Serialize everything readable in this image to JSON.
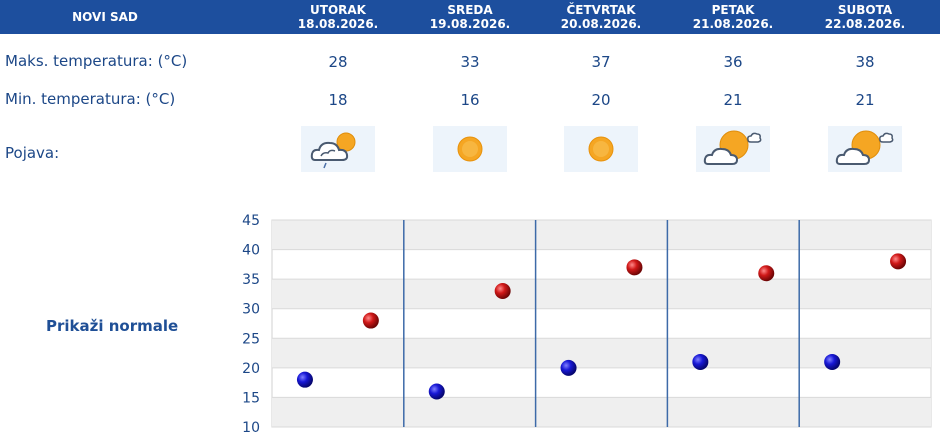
{
  "header": {
    "city": "NOVI SAD",
    "days": [
      {
        "name": "UTORAK",
        "date": "18.08.2026."
      },
      {
        "name": "SREDA",
        "date": "19.08.2026."
      },
      {
        "name": "ČETVRTAK",
        "date": "20.08.2026."
      },
      {
        "name": "PETAK",
        "date": "21.08.2026."
      },
      {
        "name": "SUBOTA",
        "date": "22.08.2026."
      }
    ]
  },
  "rows": {
    "max_label": "Maks. temperatura: (°C)",
    "min_label": "Min. temperatura: (°C)",
    "phenomenon_label": "Pojava:",
    "max": [
      "28",
      "33",
      "37",
      "36",
      "38"
    ],
    "min": [
      "18",
      "16",
      "20",
      "21",
      "21"
    ],
    "icons": [
      "cloud-sun-rain-icon",
      "sun-icon",
      "sun-icon",
      "sun-cloud-icon",
      "sun-cloud-icon"
    ]
  },
  "normals_link": "Prikaži normale",
  "chart_data": {
    "type": "scatter",
    "categories": [
      "UTORAK",
      "SREDA",
      "ČETVRTAK",
      "PETAK",
      "SUBOTA"
    ],
    "series": [
      {
        "values": [
          18,
          16,
          20,
          21,
          21
        ],
        "color": "#1a1ad0"
      },
      {
        "values": [
          28,
          33,
          37,
          36,
          38
        ],
        "color": "#d01818"
      }
    ],
    "yticks": [
      "45",
      "40",
      "35",
      "30",
      "25",
      "20",
      "15",
      "10"
    ],
    "ylim": [
      10,
      45
    ],
    "grid": true,
    "colors": {
      "header": "#1d4f9e",
      "text": "#1c4787",
      "band": "#efefef",
      "divider": "#3d6aa8"
    }
  }
}
